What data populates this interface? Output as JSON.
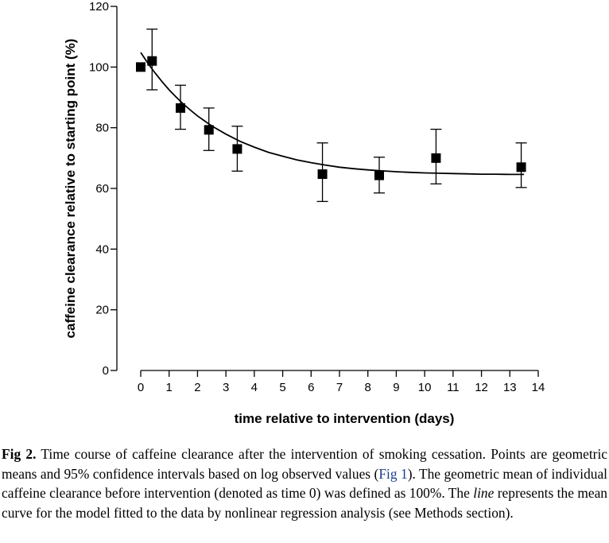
{
  "chart_data": {
    "type": "scatter",
    "xlabel": "time relative to intervention (days)",
    "ylabel": "caffeine clearance relative to starting point (%)",
    "xlim": [
      0,
      14
    ],
    "ylim": [
      0,
      120
    ],
    "xticks": [
      "0",
      "1",
      "2",
      "3",
      "4",
      "5",
      "6",
      "7",
      "8",
      "9",
      "10",
      "11",
      "12",
      "13",
      "14"
    ],
    "yticks": [
      "0",
      "20",
      "40",
      "60",
      "80",
      "100",
      "120"
    ],
    "grid": false,
    "legend": "none",
    "marker": "square",
    "series": [
      {
        "points": [
          {
            "x": 0,
            "y": 100,
            "ci_low": null,
            "ci_high": null
          },
          {
            "x": 0.4,
            "y": 102,
            "ci_low": 92.5,
            "ci_high": 112.5
          },
          {
            "x": 1.4,
            "y": 86.5,
            "ci_low": 79.5,
            "ci_high": 94
          },
          {
            "x": 2.4,
            "y": 79.3,
            "ci_low": 72.5,
            "ci_high": 86.5
          },
          {
            "x": 3.4,
            "y": 73,
            "ci_low": 65.7,
            "ci_high": 80.5
          },
          {
            "x": 6.4,
            "y": 64.7,
            "ci_low": 55.7,
            "ci_high": 75
          },
          {
            "x": 8.4,
            "y": 64.3,
            "ci_low": 58.5,
            "ci_high": 70.3
          },
          {
            "x": 10.4,
            "y": 70,
            "ci_low": 61.5,
            "ci_high": 79.5
          },
          {
            "x": 13.4,
            "y": 67,
            "ci_low": 60.3,
            "ci_high": 75
          }
        ]
      }
    ],
    "fit_curve": {
      "x": [
        0,
        0.25,
        0.5,
        0.75,
        1,
        1.25,
        1.5,
        1.75,
        2,
        2.5,
        3,
        3.5,
        4,
        4.5,
        5,
        5.5,
        6,
        6.5,
        7,
        7.5,
        8,
        8.5,
        9,
        9.5,
        10,
        10.5,
        11,
        11.5,
        12,
        12.5,
        13,
        13.5
      ],
      "y": [
        104.8,
        101.3,
        98.1,
        95.2,
        92.5,
        90.1,
        87.8,
        85.8,
        83.9,
        80.6,
        77.9,
        75.5,
        73.6,
        71.9,
        70.6,
        69.4,
        68.5,
        67.7,
        67.0,
        66.5,
        66.1,
        65.8,
        65.5,
        65.3,
        65.1,
        65.0,
        64.9,
        64.8,
        64.7,
        64.7,
        64.6,
        64.6
      ]
    }
  },
  "caption": {
    "label": "Fig 2.",
    "text_1": " Time course of caffeine clearance after the intervention of smoking cessation. Points are geometric means and 95% confidence intervals based on log observed values (",
    "link": "Fig 1",
    "text_2": "). The geometric mean of individual caffeine clearance before intervention (denoted as time 0) was defined as 100%. The ",
    "italic": "line",
    "text_3": " represents the mean curve for the model fitted to the data by nonlinear regression analysis (see Methods section)."
  }
}
